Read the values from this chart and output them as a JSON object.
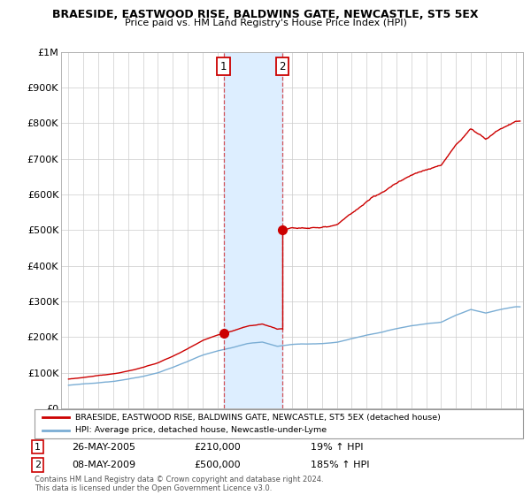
{
  "title": "BRAESIDE, EASTWOOD RISE, BALDWINS GATE, NEWCASTLE, ST5 5EX",
  "subtitle": "Price paid vs. HM Land Registry's House Price Index (HPI)",
  "legend_line1": "BRAESIDE, EASTWOOD RISE, BALDWINS GATE, NEWCASTLE, ST5 5EX (detached house)",
  "legend_line2": "HPI: Average price, detached house, Newcastle-under-Lyme",
  "annotation1_date": "26-MAY-2005",
  "annotation1_price": "£210,000",
  "annotation1_hpi": "19% ↑ HPI",
  "annotation2_date": "08-MAY-2009",
  "annotation2_price": "£500,000",
  "annotation2_hpi": "185% ↑ HPI",
  "footer": "Contains HM Land Registry data © Crown copyright and database right 2024.\nThis data is licensed under the Open Government Licence v3.0.",
  "sale1_x": 2005.4,
  "sale1_y": 210000,
  "sale2_x": 2009.35,
  "sale2_y": 500000,
  "red_color": "#cc0000",
  "blue_color": "#7aadd4",
  "shade_color": "#ddeeff",
  "marker_box_color": "#cc0000",
  "ylim": [
    0,
    1000000
  ],
  "xlim_start": 1994.5,
  "xlim_end": 2025.5
}
